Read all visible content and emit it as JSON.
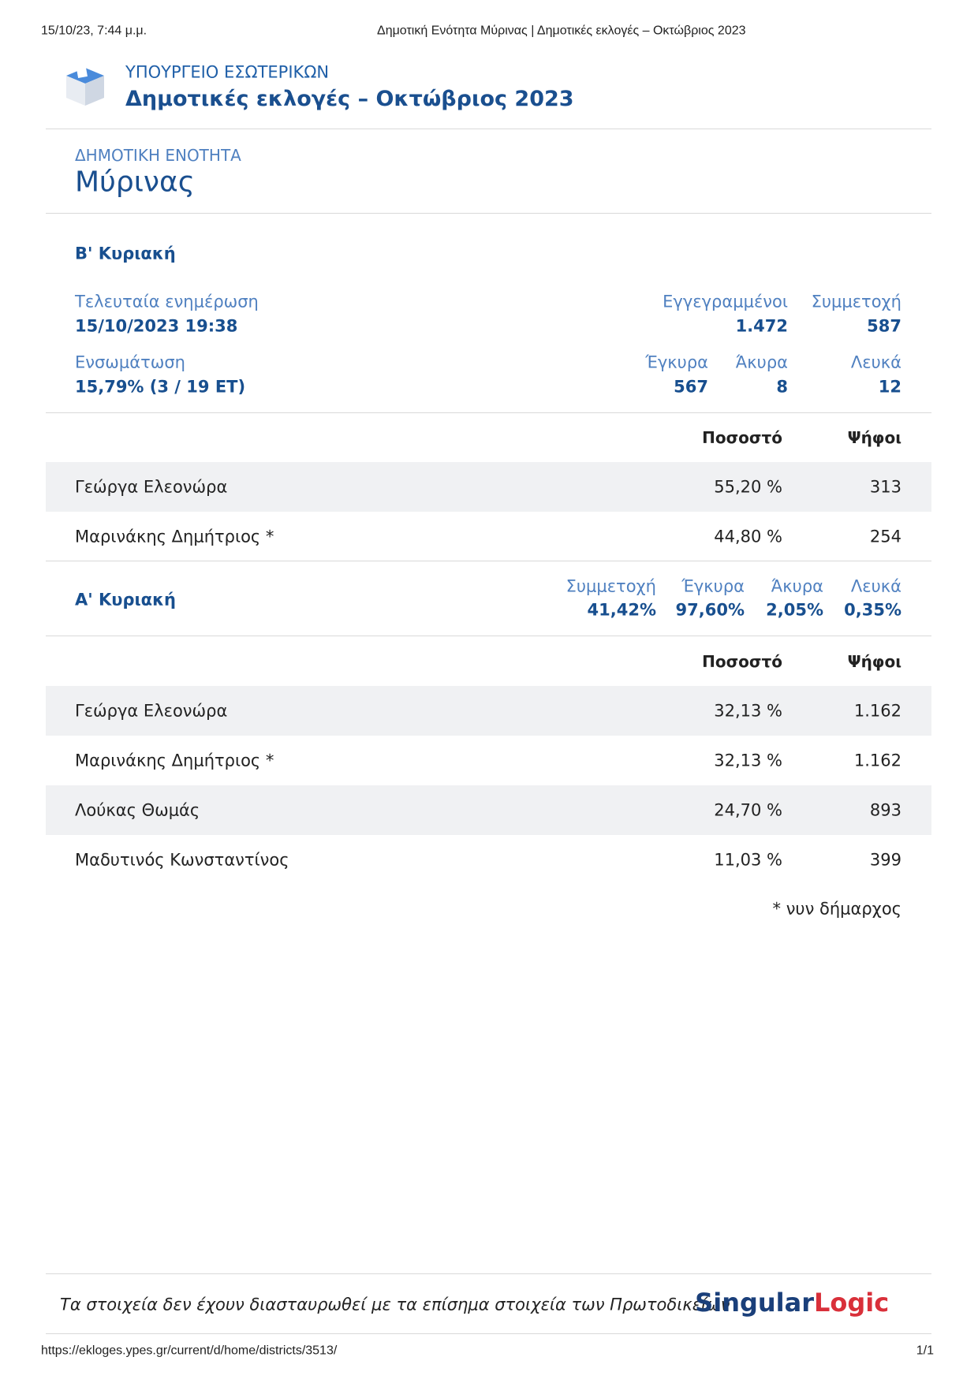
{
  "browser_header": {
    "datetime": "15/10/23, 7:44 μ.μ.",
    "page_title": "Δημοτική Ενότητα Μύρινας | Δημοτικές εκλογές – Οκτώβριος 2023"
  },
  "header": {
    "ministry": "ΥΠΟΥΡΓΕΙΟ ΕΣΩΤΕΡΙΚΩΝ",
    "title": "Δημοτικές εκλογές – Οκτώβριος 2023"
  },
  "district": {
    "type": "ΔΗΜΟΤΙΚΗ ΕΝΟΤΗΤΑ",
    "name": "Μύρινας"
  },
  "second_round": {
    "title": "Β' Κυριακή",
    "last_update": {
      "label": "Τελευταία ενημέρωση",
      "value": "15/10/2023 19:38"
    },
    "registered": {
      "label": "Εγγεγραμμένοι",
      "value": "1.472"
    },
    "turnout": {
      "label": "Συμμετοχή",
      "value": "587"
    },
    "counted": {
      "label": "Ενσωμάτωση",
      "value": "15,79% (3 / 19 ΕΤ)"
    },
    "valid": {
      "label": "Έγκυρα",
      "value": "567"
    },
    "invalid": {
      "label": "Άκυρα",
      "value": "8"
    },
    "blank": {
      "label": "Λευκά",
      "value": "12"
    },
    "table": {
      "header": [
        "Ποσοστό",
        "Ψήφοι"
      ],
      "rows": [
        [
          "Γεώργα Ελεονώρα",
          "55,20 %",
          "313"
        ],
        [
          "Μαρινάκης Δημήτριος *",
          "44,80 %",
          "254"
        ]
      ]
    }
  },
  "first_round": {
    "title": "Α' Κυριακή",
    "turnout": {
      "label": "Συμμετοχή",
      "value": "41,42%"
    },
    "valid": {
      "label": "Έγκυρα",
      "value": "97,60%"
    },
    "invalid": {
      "label": "Άκυρα",
      "value": "2,05%"
    },
    "blank": {
      "label": "Λευκά",
      "value": "0,35%"
    },
    "table": {
      "header": [
        "Ποσοστό",
        "Ψήφοι"
      ],
      "rows": [
        [
          "Γεώργα Ελεονώρα",
          "32,13 %",
          "1.162"
        ],
        [
          "Μαρινάκης Δημήτριος *",
          "32,13 %",
          "1.162"
        ],
        [
          "Λούκας Θωμάς",
          "24,70 %",
          "893"
        ],
        [
          "Μαδυτινός Κωνσταντίνος",
          "11,03 %",
          "399"
        ]
      ],
      "footnote": "* νυν δήμαρχος"
    }
  },
  "footer": {
    "note": "Τα στοιχεία δεν έχουν διασταυρωθεί με τα επίσημα στοιχεία των Πρωτοδικείων",
    "logo": [
      "Singular",
      "Logic"
    ]
  },
  "browser_footer": {
    "url": "https://ekloges.ypes.gr/current/d/home/districts/3513/",
    "page": "1/1"
  }
}
